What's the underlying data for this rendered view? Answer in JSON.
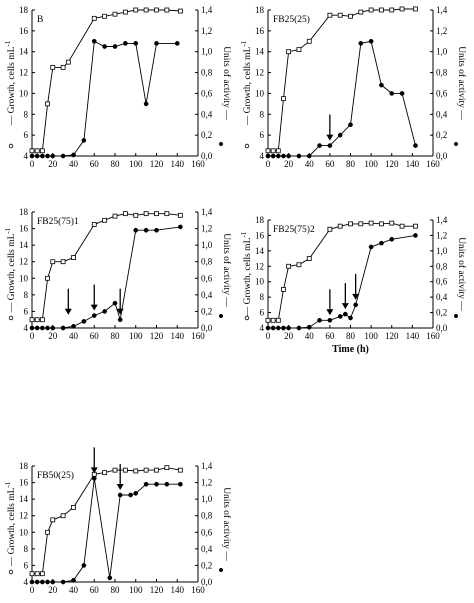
{
  "chart_data": [
    {
      "type": "line",
      "title": "B",
      "xlabel": "",
      "ylabel_left": "Growth, cells mL",
      "ylabel_left_exp": "-1",
      "ylabel_right": "Units of activity",
      "x_ticks": [
        "0",
        "20",
        "40",
        "60",
        "80",
        "100",
        "120",
        "140",
        "160"
      ],
      "y_left_ticks": [
        "4",
        "6",
        "8",
        "10",
        "12",
        "14",
        "16",
        "18"
      ],
      "y_right_ticks": [
        "0,0",
        "0,2",
        "0,4",
        "0,6",
        "0,8",
        "1,0",
        "1,2",
        "1,4"
      ],
      "xlim": [
        0,
        160
      ],
      "ylim_left": [
        4,
        18
      ],
      "ylim_right": [
        0,
        1.4
      ],
      "series": [
        {
          "marker": "open",
          "axis": "left",
          "x": [
            0,
            5,
            10,
            15,
            20,
            30,
            35,
            60,
            70,
            80,
            90,
            100,
            110,
            120,
            130,
            143
          ],
          "y": [
            4.5,
            4.5,
            4.5,
            9,
            12.5,
            12.5,
            13,
            17.2,
            17.4,
            17.6,
            17.8,
            18,
            18,
            18,
            18,
            17.9
          ]
        },
        {
          "marker": "filled",
          "axis": "right",
          "x": [
            0,
            5,
            10,
            15,
            20,
            30,
            40,
            50,
            60,
            70,
            80,
            90,
            100,
            110,
            120,
            140
          ],
          "y": [
            0,
            0,
            0,
            0,
            0,
            0,
            0.01,
            0.15,
            1.1,
            1.05,
            1.05,
            1.08,
            1.08,
            0.5,
            1.08,
            1.08
          ]
        }
      ],
      "arrows_x": []
    },
    {
      "type": "line",
      "title": "FB25(25)",
      "xlabel": "",
      "ylabel_left": "Growth, cells mL",
      "ylabel_left_exp": "-1",
      "ylabel_right": "Units of activity",
      "x_ticks": [
        "0",
        "20",
        "40",
        "60",
        "80",
        "100",
        "120",
        "140",
        "160"
      ],
      "y_left_ticks": [
        "4",
        "6",
        "8",
        "10",
        "12",
        "14",
        "16",
        "18"
      ],
      "y_right_ticks": [
        "0,0",
        "0,2",
        "0,4",
        "0,6",
        "0,8",
        "1,0",
        "1,2",
        "1,4"
      ],
      "xlim": [
        0,
        160
      ],
      "ylim_left": [
        4,
        18
      ],
      "ylim_right": [
        0,
        1.4
      ],
      "series": [
        {
          "marker": "open",
          "axis": "left",
          "x": [
            0,
            5,
            10,
            15,
            20,
            30,
            40,
            60,
            70,
            80,
            90,
            100,
            110,
            120,
            130,
            143
          ],
          "y": [
            4.5,
            4.5,
            4.5,
            9.5,
            14,
            14.2,
            15,
            17.5,
            17.5,
            17.4,
            17.8,
            18,
            18,
            18,
            18.1,
            18.1
          ]
        },
        {
          "marker": "filled",
          "axis": "right",
          "x": [
            0,
            5,
            10,
            15,
            20,
            30,
            40,
            50,
            60,
            70,
            80,
            90,
            100,
            110,
            120,
            130,
            143
          ],
          "y": [
            0,
            0,
            0,
            0,
            0,
            0,
            0,
            0.1,
            0.1,
            0.2,
            0.3,
            1.08,
            1.1,
            0.68,
            0.6,
            0.6,
            0.1
          ]
        }
      ],
      "arrows_x": [
        60
      ]
    },
    {
      "type": "line",
      "title": "FB25(75)1",
      "xlabel": "",
      "ylabel_left": "Growth, cells mL",
      "ylabel_left_exp": "-1",
      "ylabel_right": "Units of activity",
      "x_ticks": [
        "0",
        "20",
        "40",
        "60",
        "80",
        "100",
        "120",
        "140",
        "160"
      ],
      "y_left_ticks": [
        "4",
        "6",
        "8",
        "10",
        "12",
        "14",
        "16",
        "18"
      ],
      "y_right_ticks": [
        "0,0",
        "0,2",
        "0,4",
        "0,6",
        "0,8",
        "1,0",
        "1,2",
        "1,4"
      ],
      "xlim": [
        0,
        160
      ],
      "ylim_left": [
        4,
        18
      ],
      "ylim_right": [
        0,
        1.4
      ],
      "series": [
        {
          "marker": "open",
          "axis": "left",
          "x": [
            0,
            5,
            10,
            15,
            20,
            30,
            40,
            60,
            70,
            80,
            90,
            100,
            110,
            120,
            130,
            143
          ],
          "y": [
            5,
            5,
            5,
            10,
            12,
            12,
            12.5,
            16.5,
            17,
            17.5,
            17.8,
            17.6,
            17.8,
            17.8,
            17.8,
            17.6
          ]
        },
        {
          "marker": "filled",
          "axis": "right",
          "x": [
            0,
            5,
            10,
            15,
            20,
            30,
            40,
            50,
            60,
            70,
            80,
            85,
            100,
            110,
            120,
            143
          ],
          "y": [
            0,
            0,
            0,
            0,
            0,
            0,
            0.02,
            0.08,
            0.15,
            0.2,
            0.3,
            0.1,
            1.18,
            1.18,
            1.18,
            1.22
          ]
        }
      ],
      "arrows_x": [
        35,
        60,
        85
      ]
    },
    {
      "type": "line",
      "title": "FB25(75)2",
      "xlabel": "Time (h)",
      "ylabel_left": "Growth, cells mL",
      "ylabel_left_exp": "-1",
      "ylabel_right": "Units of activity",
      "x_ticks": [
        "0",
        "20",
        "40",
        "60",
        "80",
        "100",
        "120",
        "140",
        "160"
      ],
      "y_left_ticks": [
        "4",
        "6",
        "8",
        "10",
        "12",
        "14",
        "16",
        "18"
      ],
      "y_right_ticks": [
        "0,0",
        "0,2",
        "0,4",
        "0,6",
        "0,8",
        "1,0",
        "1,2",
        "1,4"
      ],
      "xlim": [
        0,
        160
      ],
      "ylim_left": [
        4,
        18
      ],
      "ylim_right": [
        0,
        1.4
      ],
      "series": [
        {
          "marker": "open",
          "axis": "left",
          "x": [
            0,
            5,
            10,
            15,
            20,
            30,
            40,
            60,
            70,
            80,
            90,
            100,
            110,
            120,
            130,
            143
          ],
          "y": [
            5,
            5,
            5,
            9,
            12,
            12.2,
            13,
            16.8,
            17.2,
            17.5,
            17.5,
            17.6,
            17.5,
            17.6,
            17.2,
            17.2
          ]
        },
        {
          "marker": "filled",
          "axis": "right",
          "x": [
            0,
            5,
            10,
            15,
            20,
            30,
            40,
            50,
            60,
            70,
            75,
            80,
            85,
            100,
            110,
            120,
            143
          ],
          "y": [
            0,
            0,
            0,
            0,
            0,
            0,
            0.01,
            0.1,
            0.1,
            0.15,
            0.18,
            0.13,
            0.3,
            1.05,
            1.1,
            1.15,
            1.2
          ]
        }
      ],
      "arrows_x": [
        60,
        75,
        85
      ]
    },
    {
      "type": "line",
      "title": "FB50(25)",
      "xlabel": "",
      "ylabel_left": "Growth, cells mL",
      "ylabel_left_exp": "-1",
      "ylabel_right": "Units of activity",
      "x_ticks": [
        "0",
        "20",
        "40",
        "60",
        "80",
        "100",
        "120",
        "140",
        "160"
      ],
      "y_left_ticks": [
        "4",
        "6",
        "8",
        "10",
        "12",
        "14",
        "16",
        "18"
      ],
      "y_right_ticks": [
        "0,0",
        "0,2",
        "0,4",
        "0,6",
        "0,8",
        "1,0",
        "1,2",
        "1,4"
      ],
      "xlim": [
        0,
        160
      ],
      "ylim_left": [
        4,
        18
      ],
      "ylim_right": [
        0,
        1.4
      ],
      "series": [
        {
          "marker": "open",
          "axis": "left",
          "x": [
            0,
            5,
            10,
            15,
            20,
            30,
            40,
            60,
            70,
            80,
            90,
            100,
            110,
            120,
            130,
            143
          ],
          "y": [
            5,
            5,
            5,
            10,
            11.5,
            12,
            13,
            17,
            17.2,
            17.5,
            17.5,
            17.4,
            17.5,
            17.5,
            17.8,
            17.5
          ]
        },
        {
          "marker": "filled",
          "axis": "right",
          "x": [
            0,
            5,
            10,
            15,
            20,
            30,
            40,
            50,
            60,
            75,
            85,
            95,
            100,
            110,
            120,
            130,
            143
          ],
          "y": [
            0,
            0,
            0,
            0,
            0,
            0,
            0.02,
            0.2,
            1.25,
            0.05,
            1.05,
            1.05,
            1.07,
            1.18,
            1.18,
            1.18,
            1.18
          ]
        }
      ],
      "arrows_x": [
        60,
        85
      ]
    }
  ]
}
